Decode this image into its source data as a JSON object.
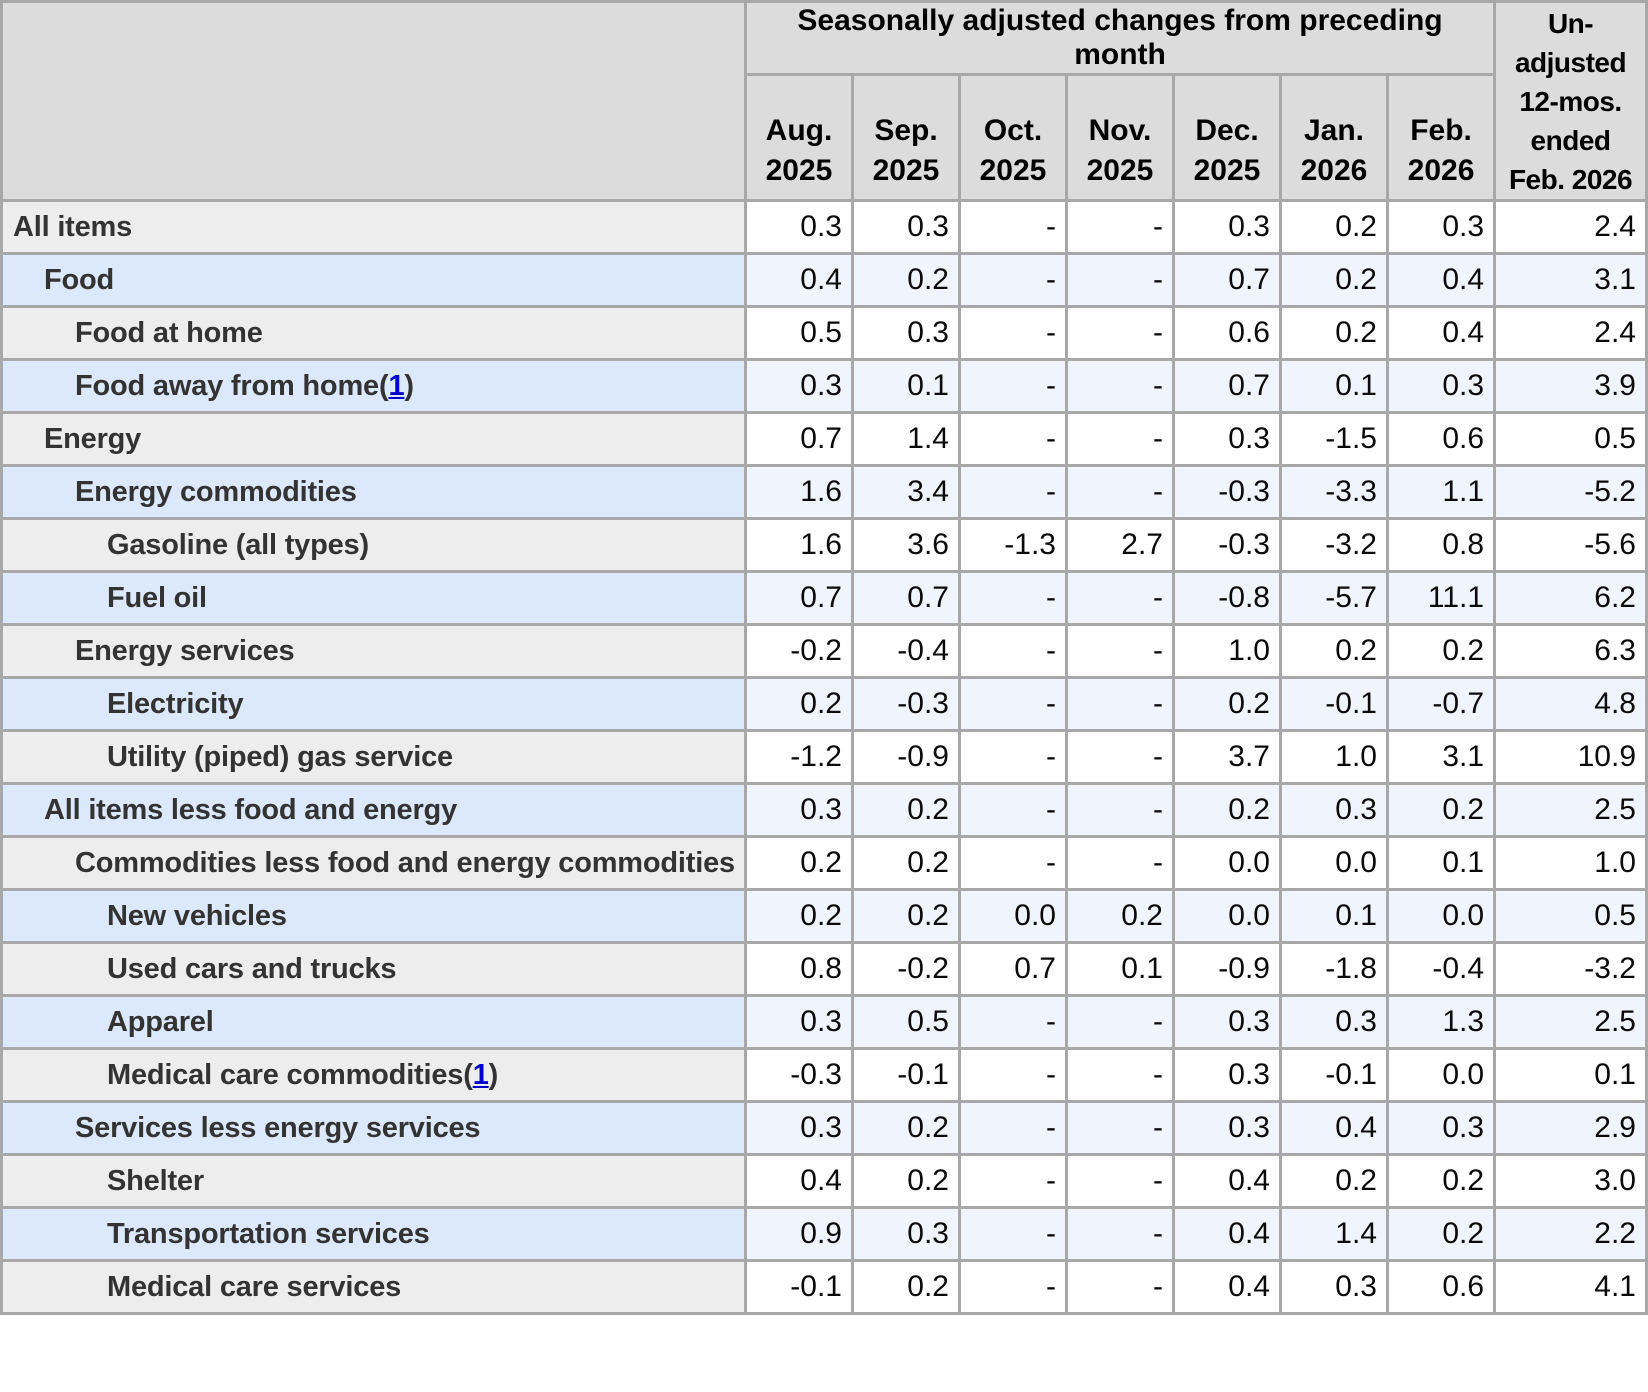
{
  "table": {
    "header": {
      "group_title": "Seasonally adjusted changes from preceding month",
      "months": [
        {
          "line1": "Aug.",
          "line2": "2025"
        },
        {
          "line1": "Sep.",
          "line2": "2025"
        },
        {
          "line1": "Oct.",
          "line2": "2025"
        },
        {
          "line1": "Nov.",
          "line2": "2025"
        },
        {
          "line1": "Dec.",
          "line2": "2025"
        },
        {
          "line1": "Jan.",
          "line2": "2026"
        },
        {
          "line1": "Feb.",
          "line2": "2026"
        }
      ],
      "unadjusted_lines": [
        "Un-",
        "adjusted",
        "12-mos.",
        "ended",
        "Feb. 2026"
      ]
    },
    "rows": [
      {
        "label": "All items",
        "indent": 0,
        "footnote": null,
        "values": [
          "0.3",
          "0.3",
          "-",
          "-",
          "0.3",
          "0.2",
          "0.3",
          "2.4"
        ]
      },
      {
        "label": "Food",
        "indent": 1,
        "footnote": null,
        "values": [
          "0.4",
          "0.2",
          "-",
          "-",
          "0.7",
          "0.2",
          "0.4",
          "3.1"
        ]
      },
      {
        "label": "Food at home",
        "indent": 2,
        "footnote": null,
        "values": [
          "0.5",
          "0.3",
          "-",
          "-",
          "0.6",
          "0.2",
          "0.4",
          "2.4"
        ]
      },
      {
        "label": "Food away from home",
        "indent": 2,
        "footnote": "1",
        "values": [
          "0.3",
          "0.1",
          "-",
          "-",
          "0.7",
          "0.1",
          "0.3",
          "3.9"
        ]
      },
      {
        "label": "Energy",
        "indent": 1,
        "footnote": null,
        "values": [
          "0.7",
          "1.4",
          "-",
          "-",
          "0.3",
          "-1.5",
          "0.6",
          "0.5"
        ]
      },
      {
        "label": "Energy commodities",
        "indent": 2,
        "footnote": null,
        "values": [
          "1.6",
          "3.4",
          "-",
          "-",
          "-0.3",
          "-3.3",
          "1.1",
          "-5.2"
        ]
      },
      {
        "label": "Gasoline (all types)",
        "indent": 3,
        "footnote": null,
        "values": [
          "1.6",
          "3.6",
          "-1.3",
          "2.7",
          "-0.3",
          "-3.2",
          "0.8",
          "-5.6"
        ]
      },
      {
        "label": "Fuel oil",
        "indent": 3,
        "footnote": null,
        "values": [
          "0.7",
          "0.7",
          "-",
          "-",
          "-0.8",
          "-5.7",
          "11.1",
          "6.2"
        ]
      },
      {
        "label": "Energy services",
        "indent": 2,
        "footnote": null,
        "values": [
          "-0.2",
          "-0.4",
          "-",
          "-",
          "1.0",
          "0.2",
          "0.2",
          "6.3"
        ]
      },
      {
        "label": "Electricity",
        "indent": 3,
        "footnote": null,
        "values": [
          "0.2",
          "-0.3",
          "-",
          "-",
          "0.2",
          "-0.1",
          "-0.7",
          "4.8"
        ]
      },
      {
        "label": "Utility (piped) gas service",
        "indent": 3,
        "footnote": null,
        "values": [
          "-1.2",
          "-0.9",
          "-",
          "-",
          "3.7",
          "1.0",
          "3.1",
          "10.9"
        ]
      },
      {
        "label": "All items less food and energy",
        "indent": 1,
        "footnote": null,
        "values": [
          "0.3",
          "0.2",
          "-",
          "-",
          "0.2",
          "0.3",
          "0.2",
          "2.5"
        ]
      },
      {
        "label": "Commodities less food and energy commodities",
        "indent": 2,
        "footnote": null,
        "values": [
          "0.2",
          "0.2",
          "-",
          "-",
          "0.0",
          "0.0",
          "0.1",
          "1.0"
        ]
      },
      {
        "label": "New vehicles",
        "indent": 3,
        "footnote": null,
        "values": [
          "0.2",
          "0.2",
          "0.0",
          "0.2",
          "0.0",
          "0.1",
          "0.0",
          "0.5"
        ]
      },
      {
        "label": "Used cars and trucks",
        "indent": 3,
        "footnote": null,
        "values": [
          "0.8",
          "-0.2",
          "0.7",
          "0.1",
          "-0.9",
          "-1.8",
          "-0.4",
          "-3.2"
        ]
      },
      {
        "label": "Apparel",
        "indent": 3,
        "footnote": null,
        "values": [
          "0.3",
          "0.5",
          "-",
          "-",
          "0.3",
          "0.3",
          "1.3",
          "2.5"
        ]
      },
      {
        "label": "Medical care commodities",
        "indent": 3,
        "footnote": "1",
        "values": [
          "-0.3",
          "-0.1",
          "-",
          "-",
          "0.3",
          "-0.1",
          "0.0",
          "0.1"
        ]
      },
      {
        "label": "Services less energy services",
        "indent": 2,
        "footnote": null,
        "values": [
          "0.3",
          "0.2",
          "-",
          "-",
          "0.3",
          "0.4",
          "0.3",
          "2.9"
        ]
      },
      {
        "label": "Shelter",
        "indent": 3,
        "footnote": null,
        "values": [
          "0.4",
          "0.2",
          "-",
          "-",
          "0.4",
          "0.2",
          "0.2",
          "3.0"
        ]
      },
      {
        "label": "Transportation services",
        "indent": 3,
        "footnote": null,
        "values": [
          "0.9",
          "0.3",
          "-",
          "-",
          "0.4",
          "1.4",
          "0.2",
          "2.2"
        ]
      },
      {
        "label": "Medical care services",
        "indent": 3,
        "footnote": null,
        "values": [
          "-0.1",
          "0.2",
          "-",
          "-",
          "0.4",
          "0.3",
          "0.6",
          "4.1"
        ]
      }
    ]
  },
  "colors": {
    "header_bg": "#dcdcdc",
    "gray_label_bg": "#ededed",
    "blue_label_bg": "#dce8fb",
    "blue_data_bg": "#f0f4fc",
    "white_data_bg": "#ffffff",
    "border": "#a8a8a8",
    "label_text": "#333333",
    "data_text": "#0a0a0a",
    "footnote_link": "#0000cc"
  },
  "chart_data": {
    "type": "table",
    "title": "Seasonally adjusted changes from preceding month",
    "columns": [
      "Aug. 2025",
      "Sep. 2025",
      "Oct. 2025",
      "Nov. 2025",
      "Dec. 2025",
      "Jan. 2026",
      "Feb. 2026",
      "Un-adjusted 12-mos. ended Feb. 2026"
    ],
    "rows": [
      {
        "category": "All items",
        "values": [
          0.3,
          0.3,
          null,
          null,
          0.3,
          0.2,
          0.3,
          2.4
        ]
      },
      {
        "category": "Food",
        "values": [
          0.4,
          0.2,
          null,
          null,
          0.7,
          0.2,
          0.4,
          3.1
        ]
      },
      {
        "category": "Food at home",
        "values": [
          0.5,
          0.3,
          null,
          null,
          0.6,
          0.2,
          0.4,
          2.4
        ]
      },
      {
        "category": "Food away from home(1)",
        "values": [
          0.3,
          0.1,
          null,
          null,
          0.7,
          0.1,
          0.3,
          3.9
        ]
      },
      {
        "category": "Energy",
        "values": [
          0.7,
          1.4,
          null,
          null,
          0.3,
          -1.5,
          0.6,
          0.5
        ]
      },
      {
        "category": "Energy commodities",
        "values": [
          1.6,
          3.4,
          null,
          null,
          -0.3,
          -3.3,
          1.1,
          -5.2
        ]
      },
      {
        "category": "Gasoline (all types)",
        "values": [
          1.6,
          3.6,
          -1.3,
          2.7,
          -0.3,
          -3.2,
          0.8,
          -5.6
        ]
      },
      {
        "category": "Fuel oil",
        "values": [
          0.7,
          0.7,
          null,
          null,
          -0.8,
          -5.7,
          11.1,
          6.2
        ]
      },
      {
        "category": "Energy services",
        "values": [
          -0.2,
          -0.4,
          null,
          null,
          1.0,
          0.2,
          0.2,
          6.3
        ]
      },
      {
        "category": "Electricity",
        "values": [
          0.2,
          -0.3,
          null,
          null,
          0.2,
          -0.1,
          -0.7,
          4.8
        ]
      },
      {
        "category": "Utility (piped) gas service",
        "values": [
          -1.2,
          -0.9,
          null,
          null,
          3.7,
          1.0,
          3.1,
          10.9
        ]
      },
      {
        "category": "All items less food and energy",
        "values": [
          0.3,
          0.2,
          null,
          null,
          0.2,
          0.3,
          0.2,
          2.5
        ]
      },
      {
        "category": "Commodities less food and energy commodities",
        "values": [
          0.2,
          0.2,
          null,
          null,
          0.0,
          0.0,
          0.1,
          1.0
        ]
      },
      {
        "category": "New vehicles",
        "values": [
          0.2,
          0.2,
          0.0,
          0.2,
          0.0,
          0.1,
          0.0,
          0.5
        ]
      },
      {
        "category": "Used cars and trucks",
        "values": [
          0.8,
          -0.2,
          0.7,
          0.1,
          -0.9,
          -1.8,
          -0.4,
          -3.2
        ]
      },
      {
        "category": "Apparel",
        "values": [
          0.3,
          0.5,
          null,
          null,
          0.3,
          0.3,
          1.3,
          2.5
        ]
      },
      {
        "category": "Medical care commodities(1)",
        "values": [
          -0.3,
          -0.1,
          null,
          null,
          0.3,
          -0.1,
          0.0,
          0.1
        ]
      },
      {
        "category": "Services less energy services",
        "values": [
          0.3,
          0.2,
          null,
          null,
          0.3,
          0.4,
          0.3,
          2.9
        ]
      },
      {
        "category": "Shelter",
        "values": [
          0.4,
          0.2,
          null,
          null,
          0.4,
          0.2,
          0.2,
          3.0
        ]
      },
      {
        "category": "Transportation services",
        "values": [
          0.9,
          0.3,
          null,
          null,
          0.4,
          1.4,
          0.2,
          2.2
        ]
      },
      {
        "category": "Medical care services",
        "values": [
          -0.1,
          0.2,
          null,
          null,
          0.4,
          0.3,
          0.6,
          4.1
        ]
      }
    ]
  }
}
